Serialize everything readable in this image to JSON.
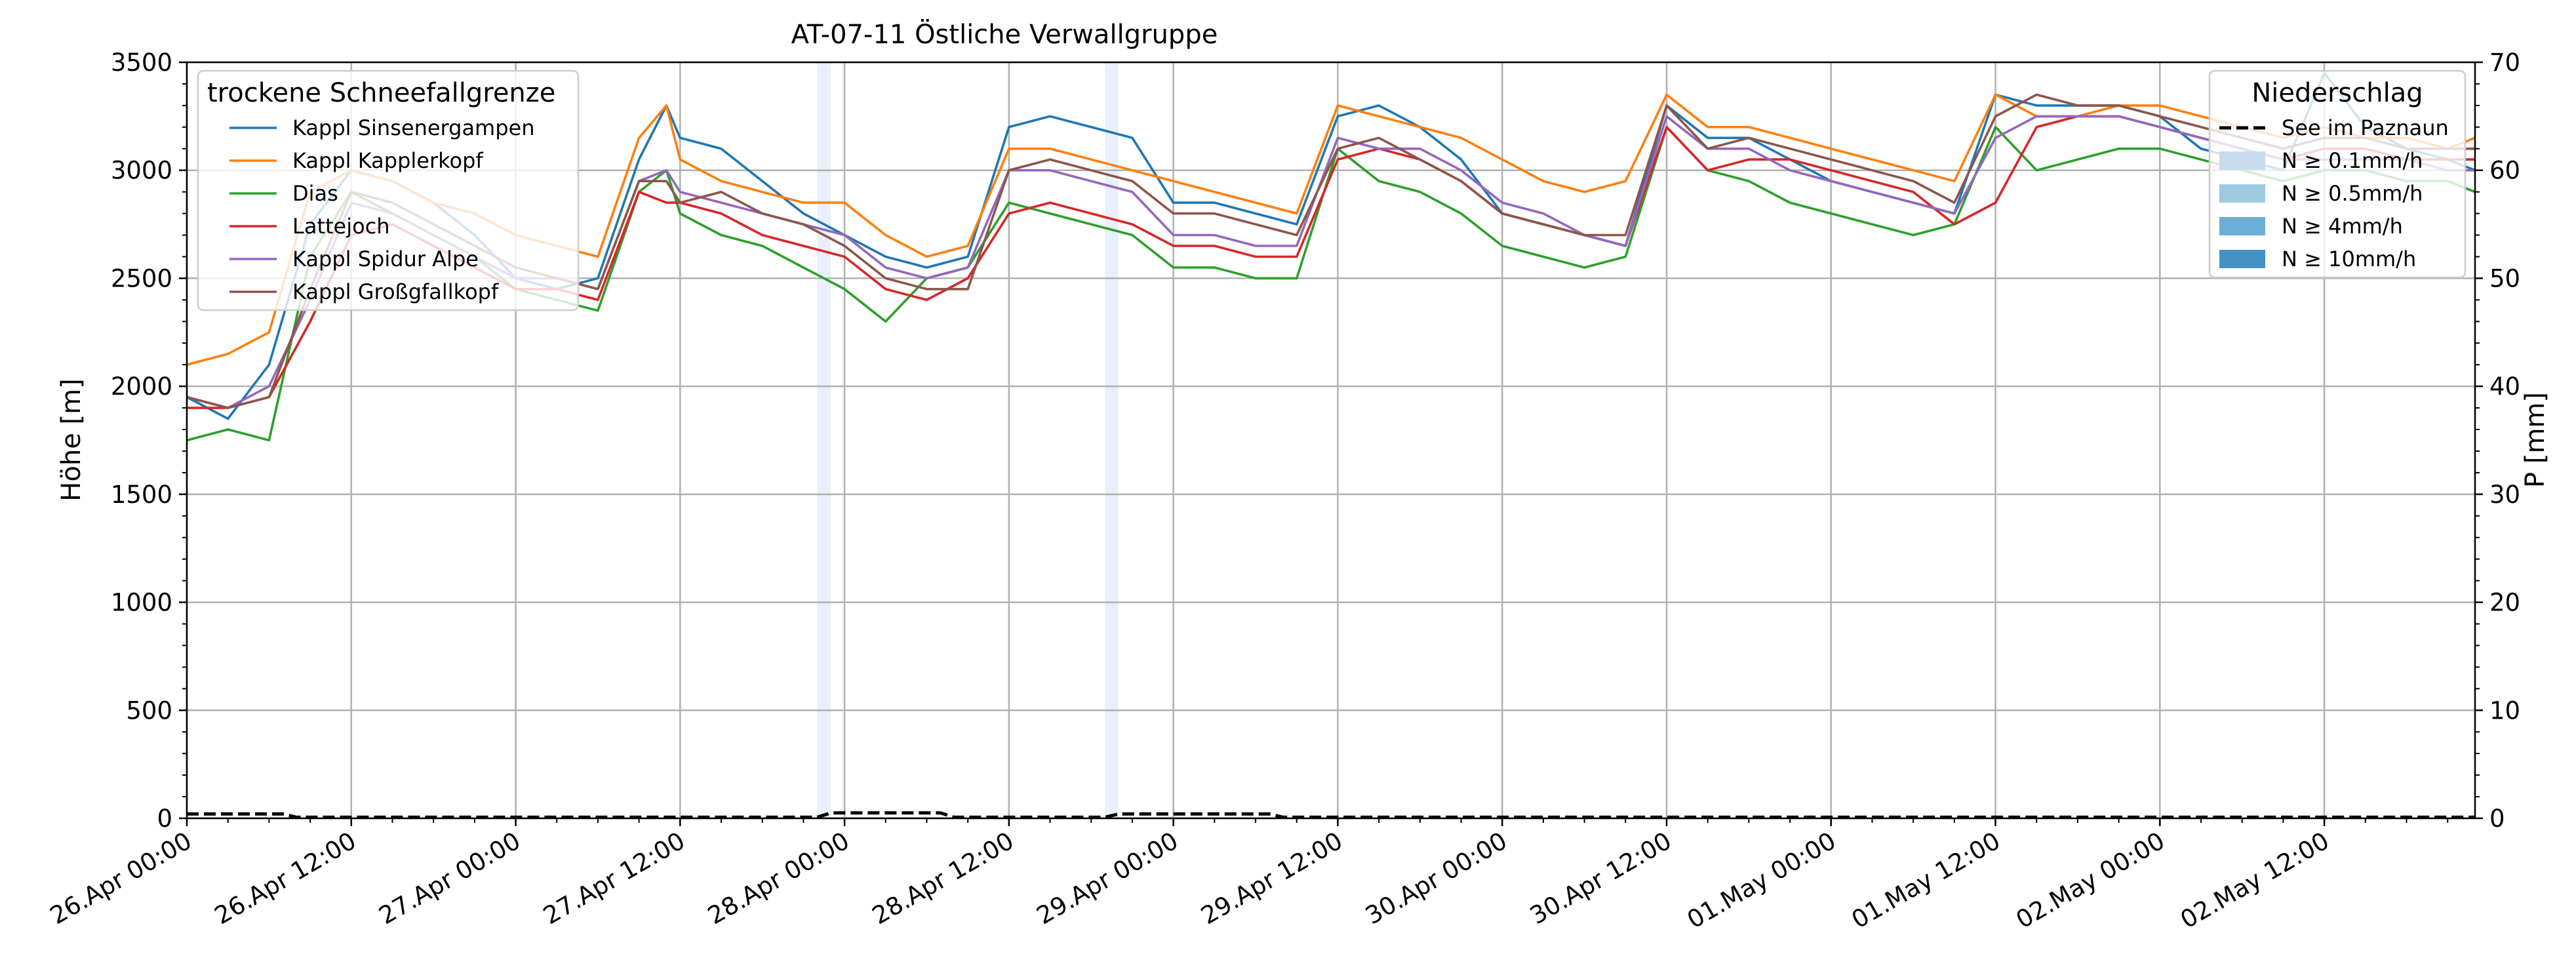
{
  "chart_data": {
    "type": "line",
    "title": "AT-07-11 Östliche Verwallgruppe",
    "ylabel": "Höhe [m]",
    "ylabel_right": "P [mm]",
    "ylim": [
      0,
      3500
    ],
    "ylim_right": [
      0,
      70
    ],
    "yticks": [
      "0",
      "500",
      "1000",
      "1500",
      "2000",
      "2500",
      "3000",
      "3500"
    ],
    "yticks_right": [
      "0",
      "10",
      "20",
      "30",
      "40",
      "50",
      "60",
      "70"
    ],
    "xlim_hours": [
      0,
      167
    ],
    "x_tick_hours": [
      0,
      12,
      24,
      36,
      48,
      60,
      72,
      84,
      96,
      108,
      120,
      132,
      144,
      156
    ],
    "x_tick_labels": [
      "26.Apr 00:00",
      "26.Apr 12:00",
      "27.Apr 00:00",
      "27.Apr 12:00",
      "28.Apr 00:00",
      "28.Apr 12:00",
      "29.Apr 00:00",
      "29.Apr 12:00",
      "30.Apr 00:00",
      "30.Apr 12:00",
      "01.May 00:00",
      "01.May 12:00",
      "02.May 00:00",
      "02.May 12:00"
    ],
    "grid": true,
    "legend_left": {
      "title": "trockene Schneefallgrenze",
      "placement": "top-left"
    },
    "legend_right": {
      "title": "Niederschlag",
      "placement": "top-right",
      "items": [
        {
          "label": "See im Paznaun",
          "style": "dashed",
          "color": "#000000"
        },
        {
          "label": "N ≥ 0.1mm/h",
          "style": "patch",
          "color": "#c6dbef"
        },
        {
          "label": "N ≥ 0.5mm/h",
          "style": "patch",
          "color": "#9ecae1"
        },
        {
          "label": "N ≥ 4mm/h",
          "style": "patch",
          "color": "#6baed6"
        },
        {
          "label": "N ≥ 10mm/h",
          "style": "patch",
          "color": "#4292c6"
        }
      ]
    },
    "precip_bands_hours": [
      [
        46,
        47
      ],
      [
        67,
        68
      ]
    ],
    "precip_bands_color": "#c6dbef",
    "precip_line": {
      "name": "See im Paznaun",
      "points": [
        [
          0,
          0.4
        ],
        [
          7,
          0.4
        ],
        [
          8,
          0.1
        ],
        [
          46,
          0.1
        ],
        [
          47,
          0.5
        ],
        [
          55,
          0.5
        ],
        [
          56,
          0.1
        ],
        [
          67,
          0.1
        ],
        [
          68,
          0.4
        ],
        [
          79,
          0.4
        ],
        [
          80,
          0.1
        ],
        [
          167,
          0.1
        ]
      ]
    },
    "x_hours": [
      0,
      3,
      6,
      9,
      12,
      15,
      18,
      21,
      24,
      27,
      30,
      33,
      35,
      36,
      39,
      42,
      45,
      48,
      51,
      54,
      57,
      60,
      63,
      66,
      69,
      72,
      75,
      78,
      81,
      84,
      87,
      90,
      93,
      96,
      99,
      102,
      105,
      108,
      111,
      114,
      117,
      120,
      123,
      126,
      129,
      132,
      135,
      138,
      141,
      144,
      147,
      150,
      153,
      156,
      159,
      162,
      165,
      167
    ],
    "series": [
      {
        "name": "Kappl Sinsenergampen",
        "color": "#1f77b4",
        "values": [
          1950,
          1850,
          2100,
          2750,
          3000,
          2950,
          2850,
          2700,
          2500,
          2450,
          2500,
          3050,
          3300,
          3150,
          3100,
          2950,
          2800,
          2700,
          2600,
          2550,
          2600,
          3200,
          3250,
          3200,
          3150,
          2850,
          2850,
          2800,
          2750,
          3250,
          3300,
          3200,
          3050,
          2800,
          2750,
          2700,
          2650,
          3300,
          3150,
          3150,
          3050,
          2950,
          2900,
          2850,
          2800,
          3350,
          3300,
          3300,
          3300,
          3250,
          3100,
          3050,
          3000,
          3450,
          3200,
          3100,
          3050,
          3000
        ]
      },
      {
        "name": "Kappl Kapplerkopf",
        "color": "#ff7f0e",
        "values": [
          2100,
          2150,
          2250,
          2900,
          3000,
          2950,
          2850,
          2800,
          2700,
          2650,
          2600,
          3150,
          3300,
          3050,
          2950,
          2900,
          2850,
          2850,
          2700,
          2600,
          2650,
          3100,
          3100,
          3050,
          3000,
          2950,
          2900,
          2850,
          2800,
          3300,
          3250,
          3200,
          3150,
          3050,
          2950,
          2900,
          2950,
          3350,
          3200,
          3200,
          3150,
          3100,
          3050,
          3000,
          2950,
          3350,
          3250,
          3250,
          3300,
          3300,
          3250,
          3200,
          3150,
          3200,
          3150,
          3150,
          3100,
          3150
        ]
      },
      {
        "name": "Dias",
        "color": "#2ca02c",
        "values": [
          1750,
          1800,
          1750,
          2600,
          2900,
          2800,
          2700,
          2600,
          2450,
          2400,
          2350,
          2900,
          3000,
          2800,
          2700,
          2650,
          2550,
          2450,
          2300,
          2500,
          2550,
          2850,
          2800,
          2750,
          2700,
          2550,
          2550,
          2500,
          2500,
          3100,
          2950,
          2900,
          2800,
          2650,
          2600,
          2550,
          2600,
          3200,
          3000,
          2950,
          2850,
          2800,
          2750,
          2700,
          2750,
          3200,
          3000,
          3050,
          3100,
          3100,
          3050,
          3000,
          2950,
          3000,
          3000,
          2950,
          2950,
          2900
        ]
      },
      {
        "name": "Lattejoch",
        "color": "#d62728",
        "values": [
          1900,
          1900,
          1950,
          2300,
          2700,
          2750,
          2650,
          2550,
          2450,
          2450,
          2400,
          2900,
          2850,
          2850,
          2800,
          2700,
          2650,
          2600,
          2450,
          2400,
          2500,
          2800,
          2850,
          2800,
          2750,
          2650,
          2650,
          2600,
          2600,
          3050,
          3100,
          3050,
          2950,
          2800,
          2750,
          2700,
          2650,
          3200,
          3000,
          3050,
          3050,
          3000,
          2950,
          2900,
          2750,
          2850,
          3200,
          3250,
          3250,
          3200,
          3150,
          3100,
          3050,
          3100,
          3100,
          3050,
          3050,
          3050
        ]
      },
      {
        "name": "Kappl Spidur Alpe",
        "color": "#9467bd",
        "values": [
          1950,
          1900,
          2000,
          2400,
          2850,
          2800,
          2700,
          2600,
          2500,
          2500,
          2450,
          2950,
          3000,
          2900,
          2850,
          2800,
          2750,
          2700,
          2550,
          2500,
          2550,
          3000,
          3000,
          2950,
          2900,
          2700,
          2700,
          2650,
          2650,
          3150,
          3100,
          3100,
          3000,
          2850,
          2800,
          2700,
          2650,
          3250,
          3100,
          3100,
          3000,
          2950,
          2900,
          2850,
          2800,
          3150,
          3250,
          3250,
          3250,
          3200,
          3150,
          3100,
          3050,
          3050,
          3050,
          3050,
          3000,
          3000
        ]
      },
      {
        "name": "Kappl Großgfallkopf",
        "color": "#8c564b",
        "values": [
          1950,
          1900,
          1950,
          2450,
          2900,
          2850,
          2750,
          2650,
          2550,
          2500,
          2450,
          2950,
          2950,
          2850,
          2900,
          2800,
          2750,
          2650,
          2500,
          2450,
          2450,
          3000,
          3050,
          3000,
          2950,
          2800,
          2800,
          2750,
          2700,
          3100,
          3150,
          3050,
          2950,
          2800,
          2750,
          2700,
          2700,
          3300,
          3100,
          3150,
          3100,
          3050,
          3000,
          2950,
          2850,
          3250,
          3350,
          3300,
          3300,
          3250,
          3200,
          3150,
          3100,
          3150,
          3150,
          3100,
          3100,
          3100
        ]
      }
    ]
  }
}
